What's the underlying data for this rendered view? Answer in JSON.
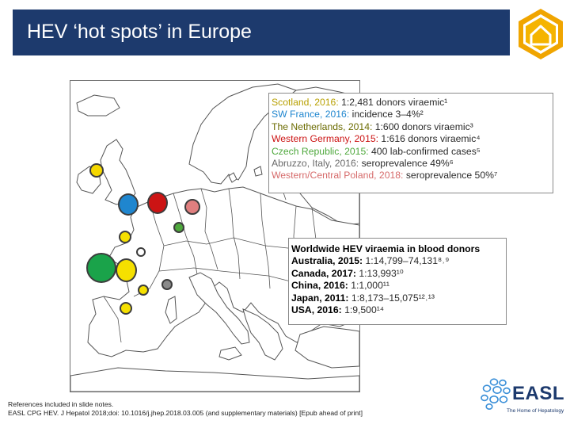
{
  "slide": {
    "title": "HEV ‘hot spots’ in Europe"
  },
  "europe_box": {
    "items": [
      {
        "label": "Scotland, 2016:",
        "text": " 1:2,481 donors viraemic¹",
        "color": "#b8a000"
      },
      {
        "label": "SW France, 2016:",
        "text": " incidence 3–4%²",
        "color": "#1f86cf"
      },
      {
        "label": "The Netherlands, 2014:",
        "text": " 1:600 donors viraemic³",
        "color": "#6b6b00"
      },
      {
        "label": "Western Germany, 2015:",
        "text": " 1:616 donors viraemic⁴",
        "color": "#cc1414"
      },
      {
        "label": "Czech Republic, 2015:",
        "text": " 400 lab-confirmed cases⁵",
        "color": "#4ea83c"
      },
      {
        "label": "Abruzzo, Italy, 2016:",
        "text": " seroprevalence 49%⁶",
        "color": "#8a8a8a"
      },
      {
        "label": "Western/Central Poland, 2018:",
        "text": " seroprevalence 50%⁷",
        "color": "#e07f7f"
      }
    ]
  },
  "world_box": {
    "title": "Worldwide HEV viraemia in blood donors",
    "items": [
      {
        "label": "Australia, 2015:",
        "text": " 1:14,799–74,131⁸˒⁹"
      },
      {
        "label": "Canada, 2017:",
        "text": " 1:13,993¹⁰"
      },
      {
        "label": "China, 2016:",
        "text": " 1:1,000¹¹"
      },
      {
        "label": "Japan, 2011:",
        "text": " 1:8,173–15,075¹²˒¹³"
      },
      {
        "label": "USA, 2016:",
        "text": " 1:9,500¹⁴"
      }
    ]
  },
  "map": {
    "hotspot_colors": {
      "scotland": "#f5d800",
      "sw_france": "#1aa34a",
      "france_west": "#f5e000",
      "netherlands": "#f5d800",
      "western_germany": "#cc1414",
      "belgium": "#1f86cf",
      "poland": "#e07f7f",
      "czech": "#4ea83c",
      "italy": "#8a8a8a",
      "sardinia": "#f5e000",
      "sw_yellow": "#f5e000",
      "alps": "#ffffff"
    }
  },
  "footer": {
    "line1": "References included in slide notes.",
    "line2": "EASL CPG HEV. J Hepatol 2018;doi: 10.1016/j.jhep.2018.03.005 (and supplementary materials) [Epub ahead of print]"
  },
  "logo": {
    "name": "EASL",
    "tagline": "The Home of Hepatology"
  }
}
